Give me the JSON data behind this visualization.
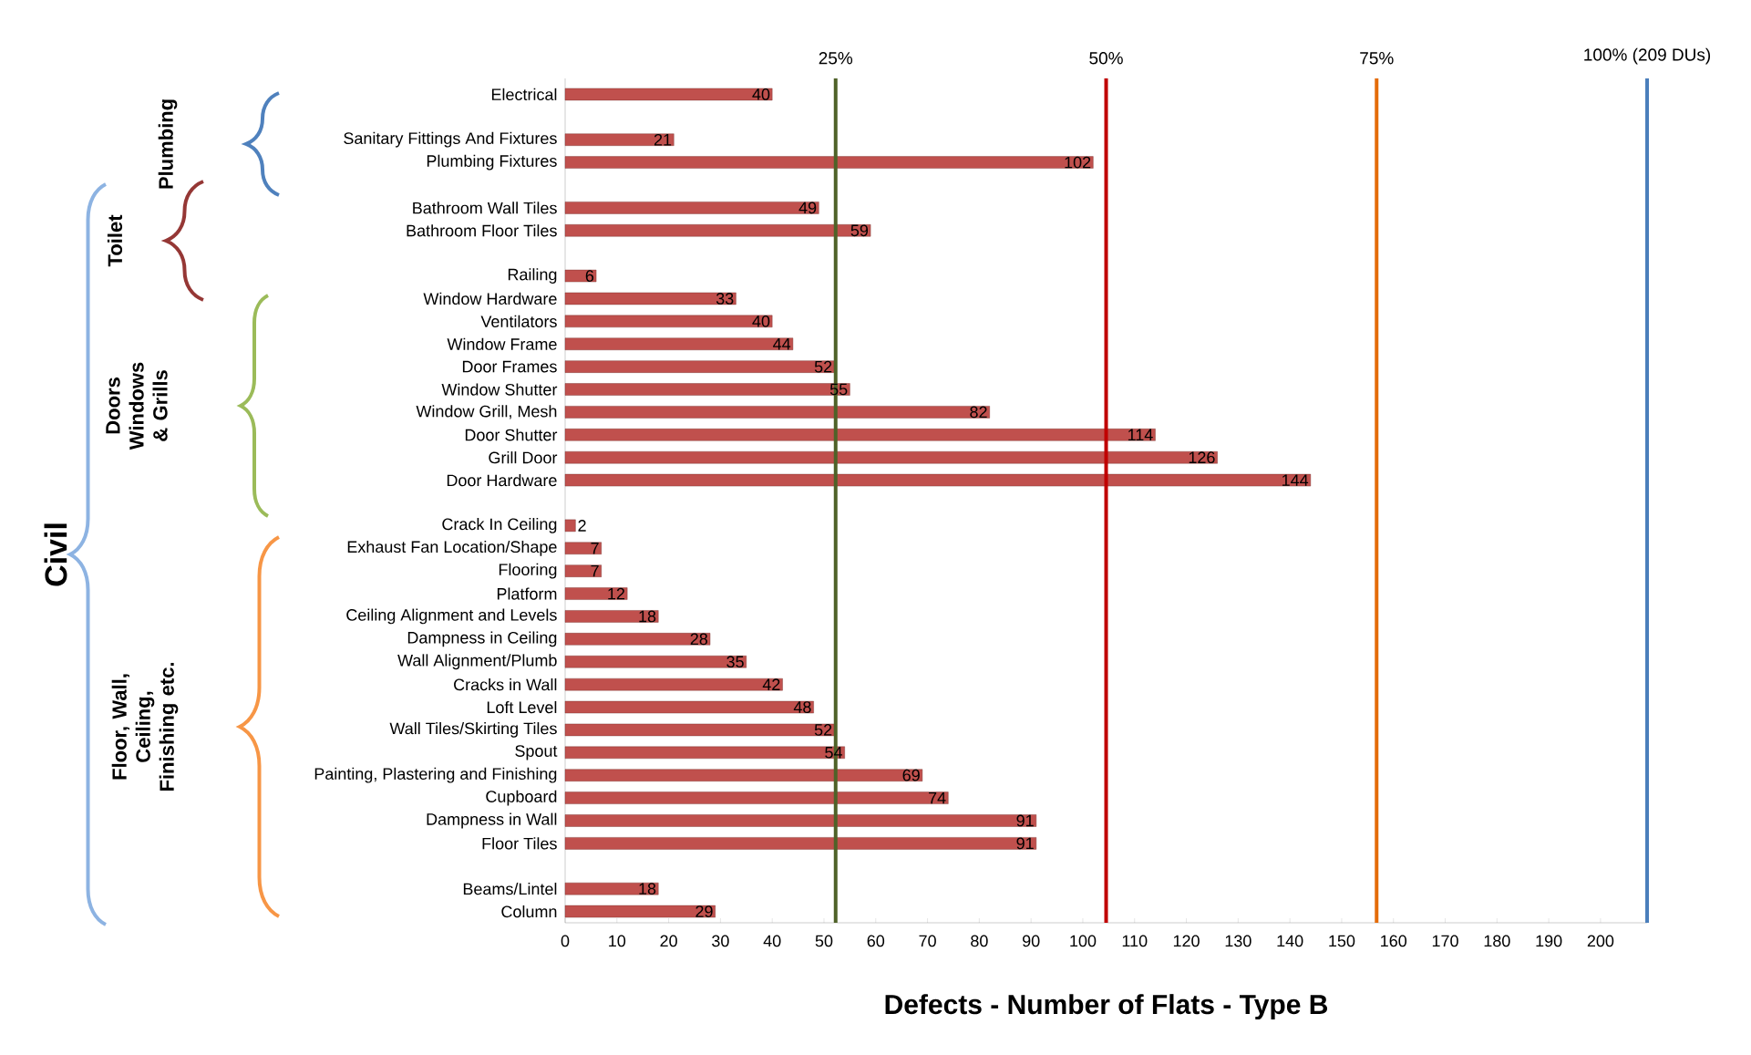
{
  "chart_data": {
    "type": "bar",
    "orientation": "horizontal",
    "categories": [
      "Electrical",
      null,
      "Sanitary Fittings  And Fixtures",
      "Plumbing Fixtures",
      null,
      "Bathroom Wall  Tiles",
      "Bathroom Floor Tiles",
      null,
      "Railing",
      "Window Hardware",
      "Ventilators",
      "Window Frame",
      "Door Frames",
      "Window Shutter",
      "Window Grill, Mesh",
      "Door Shutter",
      "Grill Door",
      "Door Hardware",
      null,
      "Crack In Ceiling",
      "Exhaust Fan  Location/Shape",
      "Flooring",
      "Platform",
      "Ceiling Alignment and Levels",
      "Dampness in Ceiling",
      "Wall Alignment/Plumb",
      "Cracks in Wall",
      "Loft Level",
      "Wall Tiles/Skirting Tiles",
      "Spout",
      "Painting, Plastering and Finishing",
      "Cupboard",
      "Dampness in Wall",
      "Floor Tiles",
      null,
      "Beams/Lintel",
      "Column"
    ],
    "values": [
      40,
      null,
      21,
      102,
      null,
      49,
      59,
      null,
      6,
      33,
      40,
      44,
      52,
      55,
      82,
      114,
      126,
      144,
      null,
      2,
      7,
      7,
      12,
      18,
      28,
      35,
      42,
      48,
      52,
      54,
      69,
      74,
      91,
      91,
      null,
      18,
      29
    ],
    "color": "#c0504d",
    "data_labels": true,
    "xlim": [
      0,
      209
    ],
    "xticks": [
      0,
      10,
      20,
      30,
      40,
      50,
      60,
      70,
      80,
      90,
      100,
      110,
      120,
      130,
      140,
      150,
      160,
      170,
      180,
      190,
      200
    ],
    "xlabel": "Defects - Number of Flats - Type B",
    "ref_lines": [
      {
        "axis": "x",
        "value": 52.25,
        "color": "#4f6228"
      },
      {
        "axis": "x",
        "value": 104.5,
        "color": "#c00000"
      },
      {
        "axis": "x",
        "value": 156.75,
        "color": "#e46c0a"
      },
      {
        "axis": "x",
        "value": 209,
        "color": "#4a7ebb"
      }
    ],
    "annotations": [
      "Plumbing",
      "Toilet",
      "Doors Windows & Grills",
      "Floor, Wall, Ceiling, Finishing etc.",
      "Civil",
      "25%",
      "50%",
      "75%",
      "100% (209 DUs)"
    ]
  }
}
